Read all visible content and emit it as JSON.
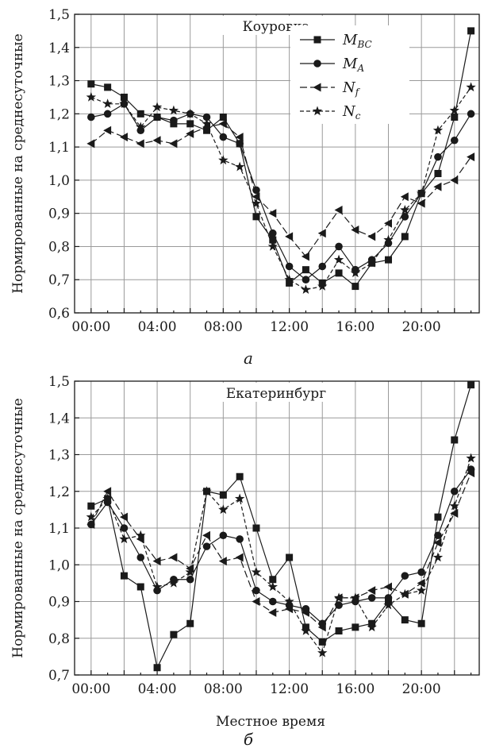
{
  "chart_data": [
    {
      "type": "line",
      "title": "Коуровка",
      "panel_label": "а",
      "ylabel": "Нормированные на среднесуточные",
      "xlabel": "",
      "ylim": [
        0.6,
        1.5
      ],
      "xlim": [
        -1,
        23.5
      ],
      "yticks": [
        0.6,
        0.7,
        0.8,
        0.9,
        1.0,
        1.1,
        1.2,
        1.3,
        1.4,
        1.5
      ],
      "ytick_labels": [
        "0,6",
        "0,7",
        "0,8",
        "0,9",
        "1,0",
        "1,1",
        "1,2",
        "1,3",
        "1,4",
        "1,5"
      ],
      "xticks": [
        0,
        4,
        8,
        12,
        16,
        20
      ],
      "xtick_labels": [
        "00:00",
        "04:00",
        "08:00",
        "12:00",
        "16:00",
        "20:00"
      ],
      "grid": true,
      "highlight_x": 16,
      "legend": "top-center",
      "x": [
        0,
        1,
        2,
        3,
        4,
        5,
        6,
        7,
        8,
        9,
        10,
        11,
        12,
        13,
        14,
        15,
        16,
        17,
        18,
        19,
        20,
        21,
        22,
        23
      ],
      "series": [
        {
          "name": "M",
          "sub": "BC",
          "marker": "square",
          "values": [
            1.29,
            1.28,
            1.25,
            1.2,
            1.19,
            1.17,
            1.17,
            1.15,
            1.19,
            1.11,
            0.89,
            0.82,
            0.69,
            0.73,
            0.69,
            0.72,
            0.68,
            0.75,
            0.76,
            0.83,
            0.96,
            1.02,
            1.19,
            1.45
          ]
        },
        {
          "name": "M",
          "sub": "A",
          "marker": "circle",
          "values": [
            1.19,
            1.2,
            1.23,
            1.15,
            1.19,
            1.18,
            1.2,
            1.19,
            1.13,
            1.11,
            0.97,
            0.84,
            0.74,
            0.7,
            0.74,
            0.8,
            0.73,
            0.76,
            0.81,
            0.89,
            0.96,
            1.07,
            1.12,
            1.2
          ]
        },
        {
          "name": "N",
          "sub": "f",
          "marker": "triangle-left",
          "values": [
            1.11,
            1.15,
            1.13,
            1.11,
            1.12,
            1.11,
            1.14,
            1.16,
            1.17,
            1.13,
            0.95,
            0.9,
            0.83,
            0.77,
            0.84,
            0.91,
            0.85,
            0.83,
            0.87,
            0.95,
            0.93,
            0.98,
            1.0,
            1.07
          ]
        },
        {
          "name": "N",
          "sub": "c",
          "marker": "star",
          "values": [
            1.25,
            1.23,
            1.23,
            1.16,
            1.22,
            1.21,
            1.2,
            1.17,
            1.06,
            1.04,
            0.93,
            0.8,
            0.7,
            0.67,
            0.68,
            0.76,
            0.72,
            0.75,
            0.82,
            0.91,
            0.96,
            1.15,
            1.21,
            1.28
          ]
        }
      ]
    },
    {
      "type": "line",
      "title": "Екатеринбург",
      "panel_label": "б",
      "ylabel": "Нормированные на среднесуточные",
      "xlabel": "Местное время",
      "ylim": [
        0.7,
        1.5
      ],
      "xlim": [
        -1,
        23.5
      ],
      "yticks": [
        0.7,
        0.8,
        0.9,
        1.0,
        1.1,
        1.2,
        1.3,
        1.4,
        1.5
      ],
      "ytick_labels": [
        "0,7",
        "0,8",
        "0,9",
        "1,0",
        "1,1",
        "1,2",
        "1,3",
        "1,4",
        "1,5"
      ],
      "xticks": [
        0,
        4,
        8,
        12,
        16,
        20
      ],
      "xtick_labels": [
        "00:00",
        "04:00",
        "08:00",
        "12:00",
        "16:00",
        "20:00"
      ],
      "grid": true,
      "highlight_x": 16,
      "x": [
        0,
        1,
        2,
        3,
        4,
        5,
        6,
        7,
        8,
        9,
        10,
        11,
        12,
        13,
        14,
        15,
        16,
        17,
        18,
        19,
        20,
        21,
        22,
        23
      ],
      "series": [
        {
          "name": "M",
          "sub": "BC",
          "marker": "square",
          "values": [
            1.16,
            1.18,
            0.97,
            0.94,
            0.72,
            0.81,
            0.84,
            1.2,
            1.19,
            1.24,
            1.1,
            0.96,
            1.02,
            0.83,
            0.79,
            0.82,
            0.83,
            0.84,
            0.9,
            0.85,
            0.84,
            1.13,
            1.34,
            1.49
          ]
        },
        {
          "name": "M",
          "sub": "A",
          "marker": "circle",
          "values": [
            1.11,
            1.17,
            1.1,
            1.02,
            0.93,
            0.96,
            0.96,
            1.05,
            1.08,
            1.07,
            0.93,
            0.9,
            0.89,
            0.88,
            0.84,
            0.89,
            0.9,
            0.91,
            0.91,
            0.97,
            0.98,
            1.08,
            1.2,
            1.26
          ]
        },
        {
          "name": "N",
          "sub": "f",
          "marker": "triangle-left",
          "values": [
            1.11,
            1.2,
            1.13,
            1.07,
            1.01,
            1.02,
            0.99,
            1.08,
            1.01,
            1.02,
            0.9,
            0.87,
            0.88,
            0.87,
            0.83,
            0.91,
            0.91,
            0.93,
            0.94,
            0.92,
            0.95,
            1.06,
            1.14,
            1.25
          ]
        },
        {
          "name": "N",
          "sub": "c",
          "marker": "star",
          "values": [
            1.13,
            1.18,
            1.07,
            1.08,
            0.94,
            0.95,
            0.98,
            1.2,
            1.15,
            1.18,
            0.98,
            0.94,
            0.9,
            0.82,
            0.76,
            0.91,
            0.91,
            0.83,
            0.89,
            0.92,
            0.93,
            1.02,
            1.16,
            1.29
          ]
        }
      ]
    }
  ]
}
